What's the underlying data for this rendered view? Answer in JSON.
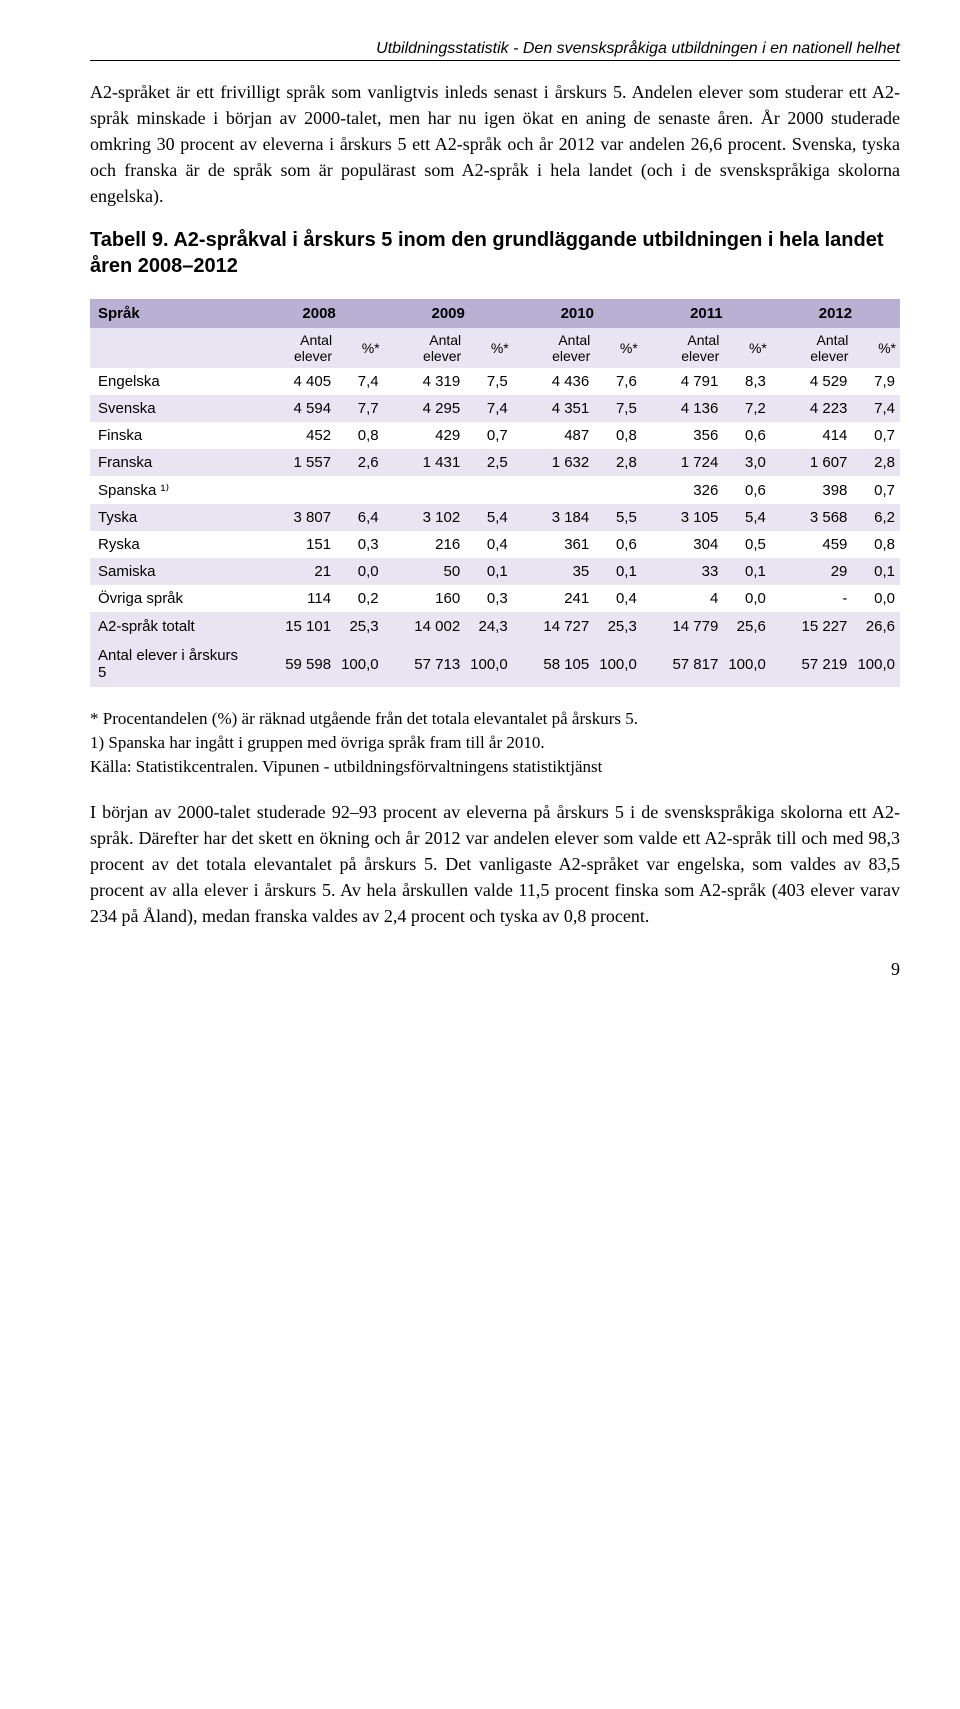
{
  "header": "Utbildningsstatistik - Den svenskspråkiga utbildningen i en nationell helhet",
  "para1": "A2-språket är ett frivilligt språk som vanligtvis inleds senast i årskurs 5. Andelen elever som studerar ett A2-språk minskade i början av 2000-talet, men har nu igen ökat en aning de senaste åren. År 2000 studerade omkring 30 procent av eleverna i årskurs 5 ett A2-språk och år 2012 var andelen 26,6 procent. Svenska, tyska och franska är de språk som är populärast som A2-språk i hela landet (och i de svenskspråkiga skolorna engelska).",
  "table_caption": "Tabell 9. A2-språkval i årskurs 5 inom den grundläggande utbildningen i hela landet åren 2008–2012",
  "table": {
    "col_sprak": "Språk",
    "years": [
      "2008",
      "2009",
      "2010",
      "2011",
      "2012"
    ],
    "sub_antal": "Antal elever",
    "sub_pct": "%*",
    "rows": [
      {
        "label": "Engelska",
        "cells": [
          "4 405",
          "7,4",
          "4 319",
          "7,5",
          "4 436",
          "7,6",
          "4 791",
          "8,3",
          "4 529",
          "7,9"
        ]
      },
      {
        "label": "Svenska",
        "cells": [
          "4 594",
          "7,7",
          "4 295",
          "7,4",
          "4 351",
          "7,5",
          "4 136",
          "7,2",
          "4 223",
          "7,4"
        ]
      },
      {
        "label": "Finska",
        "cells": [
          "452",
          "0,8",
          "429",
          "0,7",
          "487",
          "0,8",
          "356",
          "0,6",
          "414",
          "0,7"
        ]
      },
      {
        "label": "Franska",
        "cells": [
          "1 557",
          "2,6",
          "1 431",
          "2,5",
          "1 632",
          "2,8",
          "1 724",
          "3,0",
          "1 607",
          "2,8"
        ]
      },
      {
        "label": "Spanska ¹⁾",
        "cells": [
          "",
          "",
          "",
          "",
          "",
          "",
          "326",
          "0,6",
          "398",
          "0,7"
        ]
      },
      {
        "label": "Tyska",
        "cells": [
          "3 807",
          "6,4",
          "3 102",
          "5,4",
          "3 184",
          "5,5",
          "3 105",
          "5,4",
          "3 568",
          "6,2"
        ]
      },
      {
        "label": "Ryska",
        "cells": [
          "151",
          "0,3",
          "216",
          "0,4",
          "361",
          "0,6",
          "304",
          "0,5",
          "459",
          "0,8"
        ]
      },
      {
        "label": "Samiska",
        "cells": [
          "21",
          "0,0",
          "50",
          "0,1",
          "35",
          "0,1",
          "33",
          "0,1",
          "29",
          "0,1"
        ]
      },
      {
        "label": "Övriga språk",
        "cells": [
          "114",
          "0,2",
          "160",
          "0,3",
          "241",
          "0,4",
          "4",
          "0,0",
          "-",
          "0,0"
        ]
      },
      {
        "label": "A2-språk totalt",
        "cells": [
          "15 101",
          "25,3",
          "14 002",
          "24,3",
          "14 727",
          "25,3",
          "14 779",
          "25,6",
          "15 227",
          "26,6"
        ]
      },
      {
        "label": "Antal elever i årskurs 5",
        "cells": [
          "59 598",
          "100,0",
          "57 713",
          "100,0",
          "58 105",
          "100,0",
          "57 817",
          "100,0",
          "57 219",
          "100,0"
        ]
      }
    ]
  },
  "footnote1": "* Procentandelen (%) är räknad utgående från det totala elevantalet på årskurs 5.",
  "footnote2": "1) Spanska har ingått i gruppen med övriga språk fram till år 2010.",
  "footnote3": "Källa: Statistikcentralen. Vipunen - utbildningsförvaltningens statistiktjänst",
  "para2": "I början av 2000-talet studerade 92–93 procent av eleverna på årskurs 5 i de svenskspråkiga skolorna ett A2-språk. Därefter har det skett en ökning och år 2012 var andelen elever som valde ett A2-språk till och med 98,3 procent av det totala elevantalet på årskurs 5. Det vanligaste A2-språket var engelska, som valdes av 83,5 procent av alla elever i årskurs 5. Av hela årskullen valde 11,5 procent finska som A2-språk (403 elever varav 234 på Åland), medan franska valdes av 2,4 procent och tyska av 0,8 procent.",
  "page_number": "9",
  "colors": {
    "header_row_bg": "#b9b0d3",
    "alt_row_bg": "#e8e4f1"
  }
}
